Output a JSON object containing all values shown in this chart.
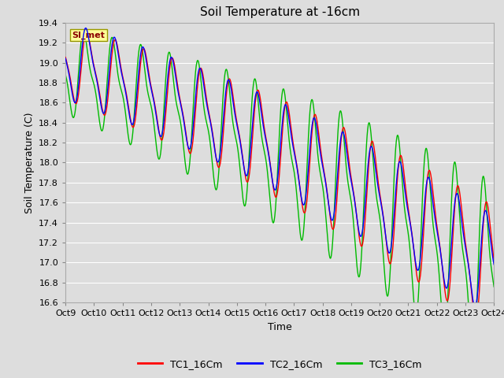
{
  "title": "Soil Temperature at -16cm",
  "xlabel": "Time",
  "ylabel": "Soil Temperature (C)",
  "ylim": [
    16.6,
    19.4
  ],
  "yticks": [
    16.6,
    16.8,
    17.0,
    17.2,
    17.4,
    17.6,
    17.8,
    18.0,
    18.2,
    18.4,
    18.6,
    18.8,
    19.0,
    19.2,
    19.4
  ],
  "xtick_labels": [
    "Oct 9",
    "Oct 10",
    "Oct 11",
    "Oct 12",
    "Oct 13",
    "Oct 14",
    "Oct 15",
    "Oct 16",
    "Oct 17",
    "Oct 18",
    "Oct 19",
    "Oct 20",
    "Oct 21",
    "Oct 22",
    "Oct 23",
    "Oct 24"
  ],
  "legend_labels": [
    "TC1_16Cm",
    "TC2_16Cm",
    "TC3_16Cm"
  ],
  "legend_colors": [
    "#ff0000",
    "#0000ff",
    "#00bb00"
  ],
  "watermark_text": "SI_met",
  "bg_color": "#dddddd",
  "plot_bg_color": "#dddddd",
  "grid_color": "#ffffff",
  "title_fontsize": 11,
  "axis_fontsize": 9,
  "tick_fontsize": 8,
  "num_points": 1440
}
